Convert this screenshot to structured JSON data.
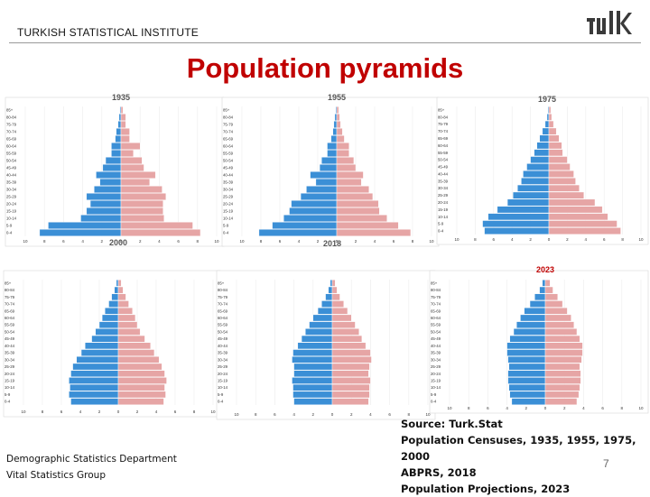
{
  "header": {
    "org": "TURKISH STATISTICAL INSTITUTE",
    "title": "Population pyramids",
    "logo_text": "TÜİK"
  },
  "footer": {
    "dept": "Demographic Statistics Department",
    "group": "Vital Statistics Group",
    "source_lines": [
      "Source: Turk.Stat",
      "Population Censuses, 1935, 1955, 1975, 2000",
      "ABPRS, 2018",
      "Population Projections, 2023"
    ],
    "page_number": "7"
  },
  "colors": {
    "male": "#3b8fd6",
    "female": "#e6a5a5",
    "title": "#c00000",
    "title_2023": "#c00000"
  },
  "chart_data": [
    {
      "type": "bar",
      "title": "1935",
      "categories": [
        "0-4",
        "5-9",
        "10-14",
        "15-19",
        "20-24",
        "25-29",
        "30-34",
        "35-39",
        "40-44",
        "45-49",
        "50-54",
        "55-59",
        "60-64",
        "65-69",
        "70-74",
        "75-79",
        "80-84",
        "85+"
      ],
      "xlim": [
        -10,
        10
      ],
      "xticks": [
        "10",
        "8",
        "6",
        "4",
        "2",
        "0",
        "2",
        "4",
        "6",
        "8",
        "10"
      ],
      "series": [
        {
          "values": [
            -8.5,
            -7.6,
            -4.2,
            -3.6,
            -3.2,
            -3.6,
            -2.8,
            -2.2,
            -2.6,
            -1.9,
            -1.6,
            -1.0,
            -1.0,
            -0.6,
            -0.5,
            -0.3,
            -0.2,
            -0.1
          ]
        },
        {
          "values": [
            8.3,
            7.5,
            4.5,
            4.4,
            4.4,
            4.7,
            4.3,
            3.0,
            3.6,
            2.4,
            2.2,
            1.3,
            2.0,
            0.9,
            0.9,
            0.5,
            0.5,
            0.2
          ]
        }
      ]
    },
    {
      "type": "bar",
      "title": "1955",
      "categories": [
        "0-4",
        "5-9",
        "10-14",
        "15-19",
        "20-24",
        "25-29",
        "30-34",
        "35-39",
        "40-44",
        "45-49",
        "50-54",
        "55-59",
        "60-64",
        "65-69",
        "70-74",
        "75-79",
        "80-84",
        "85+"
      ],
      "xlim": [
        -10,
        10
      ],
      "xticks": [
        "10",
        "8",
        "6",
        "4",
        "2",
        "0",
        "2",
        "4",
        "6",
        "8",
        "10"
      ],
      "series": [
        {
          "values": [
            -8.2,
            -6.8,
            -5.6,
            -5.0,
            -4.8,
            -3.8,
            -3.2,
            -2.2,
            -2.8,
            -1.8,
            -1.6,
            -1.0,
            -1.0,
            -0.6,
            -0.4,
            -0.3,
            -0.2,
            -0.1
          ]
        },
        {
          "values": [
            7.8,
            6.5,
            5.3,
            4.5,
            4.4,
            3.8,
            3.4,
            2.6,
            2.8,
            2.0,
            1.8,
            1.3,
            1.3,
            0.8,
            0.6,
            0.4,
            0.3,
            0.2
          ]
        }
      ]
    },
    {
      "type": "bar",
      "title": "1975",
      "categories": [
        "0-4",
        "5-9",
        "10-14",
        "15-19",
        "20-24",
        "25-29",
        "30-34",
        "35-39",
        "40-44",
        "45-49",
        "50-54",
        "55-59",
        "60-64",
        "65-69",
        "70-74",
        "75-79",
        "80-84",
        "85+"
      ],
      "xlim": [
        -10,
        10
      ],
      "xticks": [
        "10",
        "8",
        "6",
        "4",
        "2",
        "0",
        "2",
        "4",
        "6",
        "8",
        "10"
      ],
      "series": [
        {
          "values": [
            -7.0,
            -7.2,
            -6.6,
            -5.6,
            -4.5,
            -3.9,
            -3.4,
            -3.0,
            -2.8,
            -2.4,
            -2.0,
            -1.6,
            -1.3,
            -1.0,
            -0.7,
            -0.4,
            -0.2,
            -0.1
          ]
        },
        {
          "values": [
            7.8,
            7.4,
            6.4,
            5.8,
            5.0,
            3.8,
            3.3,
            2.9,
            2.7,
            2.3,
            2.0,
            1.5,
            1.4,
            1.1,
            0.8,
            0.5,
            0.3,
            0.2
          ]
        }
      ]
    },
    {
      "type": "bar",
      "title": "2000",
      "categories": [
        "0-4",
        "5-9",
        "10-14",
        "15-19",
        "20-24",
        "25-29",
        "30-34",
        "35-39",
        "40-44",
        "45-49",
        "50-54",
        "55-59",
        "60-64",
        "65-69",
        "70-74",
        "75-79",
        "80-84",
        "85+"
      ],
      "xlim": [
        -10,
        10
      ],
      "xticks": [
        "10",
        "8",
        "6",
        "4",
        "2",
        "0",
        "2",
        "4",
        "6",
        "8",
        "10"
      ],
      "series": [
        {
          "values": [
            -5.0,
            -5.2,
            -5.1,
            -5.2,
            -5.0,
            -4.8,
            -4.4,
            -3.9,
            -3.5,
            -2.8,
            -2.4,
            -2.0,
            -1.7,
            -1.4,
            -1.0,
            -0.7,
            -0.4,
            -0.2
          ]
        },
        {
          "values": [
            4.8,
            5.0,
            4.9,
            5.1,
            4.9,
            4.6,
            4.3,
            3.8,
            3.4,
            2.8,
            2.3,
            2.0,
            1.8,
            1.5,
            1.1,
            0.8,
            0.5,
            0.3
          ]
        }
      ]
    },
    {
      "type": "bar",
      "title": "2018",
      "categories": [
        "0-4",
        "5-9",
        "10-14",
        "15-19",
        "20-24",
        "25-29",
        "30-34",
        "35-39",
        "40-44",
        "45-49",
        "50-54",
        "55-59",
        "60-64",
        "65-69",
        "70-74",
        "75-79",
        "80-84",
        "85+"
      ],
      "xlim": [
        -10,
        10
      ],
      "xticks": [
        "10",
        "8",
        "6",
        "4",
        "2",
        "0",
        "2",
        "4",
        "6",
        "8",
        "10"
      ],
      "series": [
        {
          "values": [
            -4.0,
            -4.1,
            -4.1,
            -4.2,
            -4.0,
            -4.0,
            -4.2,
            -4.1,
            -3.6,
            -3.2,
            -2.8,
            -2.4,
            -2.0,
            -1.5,
            -1.1,
            -0.7,
            -0.4,
            -0.2
          ]
        },
        {
          "values": [
            3.8,
            3.9,
            3.9,
            4.0,
            3.8,
            3.9,
            4.1,
            4.0,
            3.5,
            3.1,
            2.8,
            2.4,
            2.0,
            1.6,
            1.2,
            0.8,
            0.5,
            0.3
          ]
        }
      ]
    },
    {
      "type": "bar",
      "title": "2023",
      "categories": [
        "0-4",
        "5-9",
        "10-14",
        "15-19",
        "20-24",
        "25-29",
        "30-34",
        "35-39",
        "40-44",
        "45-49",
        "50-54",
        "55-59",
        "60-64",
        "65-69",
        "70-74",
        "75-79",
        "80-84",
        "85+"
      ],
      "xlim": [
        -10,
        10
      ],
      "xticks": [
        "10",
        "8",
        "6",
        "4",
        "2",
        "0",
        "2",
        "4",
        "6",
        "8",
        "10"
      ],
      "series": [
        {
          "values": [
            -3.5,
            -3.7,
            -3.8,
            -3.9,
            -3.9,
            -3.8,
            -3.9,
            -4.0,
            -4.0,
            -3.7,
            -3.3,
            -3.0,
            -2.6,
            -2.2,
            -1.6,
            -1.1,
            -0.6,
            -0.3
          ]
        },
        {
          "values": [
            3.3,
            3.5,
            3.6,
            3.7,
            3.7,
            3.6,
            3.8,
            3.9,
            3.9,
            3.6,
            3.3,
            3.0,
            2.7,
            2.3,
            1.8,
            1.3,
            0.8,
            0.5
          ]
        }
      ]
    }
  ]
}
